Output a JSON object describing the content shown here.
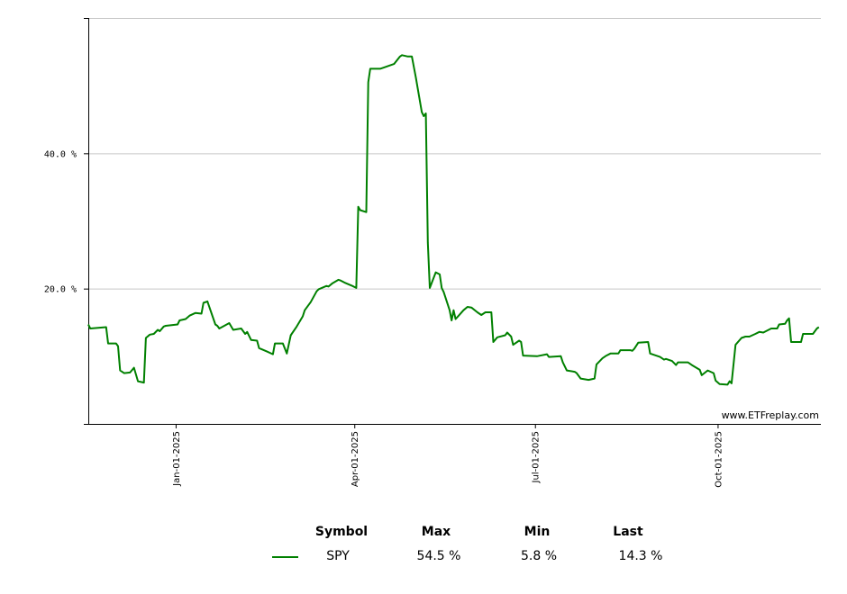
{
  "chart_data": {
    "type": "line",
    "title": "",
    "xlabel": "",
    "ylabel": "",
    "x_type": "date",
    "xlim": [
      "2024-11-18",
      "2025-11-22"
    ],
    "ylim": [
      0,
      60
    ],
    "y_ticks": [
      20,
      40
    ],
    "y_tick_labels": [
      "20.0 %",
      "40.0 %"
    ],
    "x_ticks": [
      "2025-01-01",
      "2025-04-01",
      "2025-07-01",
      "2025-10-01"
    ],
    "x_tick_labels": [
      "Jan-01-2025",
      "Apr-01-2025",
      "Jul-01-2025",
      "Oct-01-2025"
    ],
    "grid": "horizontal",
    "legend": "bottom",
    "watermark": "www.ETFreplay.com",
    "series": [
      {
        "name": "SPY",
        "color": "#008000",
        "points": [
          [
            "2024-11-18",
            14.7
          ],
          [
            "2024-11-19",
            14.1
          ],
          [
            "2024-11-27",
            14.3
          ],
          [
            "2024-11-28",
            11.9
          ],
          [
            "2024-12-02",
            11.9
          ],
          [
            "2024-12-03",
            11.5
          ],
          [
            "2024-12-04",
            7.9
          ],
          [
            "2024-12-06",
            7.5
          ],
          [
            "2024-12-09",
            7.6
          ],
          [
            "2024-12-11",
            8.3
          ],
          [
            "2024-12-13",
            6.3
          ],
          [
            "2024-12-16",
            6.1
          ],
          [
            "2024-12-17",
            12.7
          ],
          [
            "2024-12-19",
            13.2
          ],
          [
            "2024-12-21",
            13.3
          ],
          [
            "2024-12-23",
            13.9
          ],
          [
            "2024-12-24",
            13.7
          ],
          [
            "2024-12-26",
            14.4
          ],
          [
            "2024-12-27",
            14.5
          ],
          [
            "2025-01-02",
            14.7
          ],
          [
            "2025-01-03",
            15.3
          ],
          [
            "2025-01-06",
            15.5
          ],
          [
            "2025-01-08",
            16.0
          ],
          [
            "2025-01-11",
            16.4
          ],
          [
            "2025-01-14",
            16.3
          ],
          [
            "2025-01-15",
            17.9
          ],
          [
            "2025-01-17",
            18.1
          ],
          [
            "2025-01-21",
            14.7
          ],
          [
            "2025-01-22",
            14.5
          ],
          [
            "2025-01-23",
            14.1
          ],
          [
            "2025-01-28",
            14.9
          ],
          [
            "2025-01-30",
            13.9
          ],
          [
            "2025-02-03",
            14.1
          ],
          [
            "2025-02-05",
            13.3
          ],
          [
            "2025-02-06",
            13.6
          ],
          [
            "2025-02-08",
            12.4
          ],
          [
            "2025-02-11",
            12.3
          ],
          [
            "2025-02-12",
            11.2
          ],
          [
            "2025-02-16",
            10.7
          ],
          [
            "2025-02-19",
            10.3
          ],
          [
            "2025-02-20",
            11.9
          ],
          [
            "2025-02-24",
            11.9
          ],
          [
            "2025-02-26",
            10.4
          ],
          [
            "2025-02-28",
            13.1
          ],
          [
            "2025-03-03",
            14.4
          ],
          [
            "2025-03-06",
            15.9
          ],
          [
            "2025-03-07",
            16.8
          ],
          [
            "2025-03-10",
            18.0
          ],
          [
            "2025-03-13",
            19.6
          ],
          [
            "2025-03-14",
            19.9
          ],
          [
            "2025-03-18",
            20.4
          ],
          [
            "2025-03-19",
            20.3
          ],
          [
            "2025-03-21",
            20.8
          ],
          [
            "2025-03-24",
            21.3
          ],
          [
            "2025-03-25",
            21.2
          ],
          [
            "2025-03-27",
            20.9
          ],
          [
            "2025-03-31",
            20.4
          ],
          [
            "2025-04-02",
            20.1
          ],
          [
            "2025-04-03",
            32.1
          ],
          [
            "2025-04-04",
            31.6
          ],
          [
            "2025-04-07",
            31.3
          ],
          [
            "2025-04-08",
            50.5
          ],
          [
            "2025-04-09",
            52.5
          ],
          [
            "2025-04-14",
            52.5
          ],
          [
            "2025-04-16",
            52.7
          ],
          [
            "2025-04-21",
            53.2
          ],
          [
            "2025-04-24",
            54.3
          ],
          [
            "2025-04-25",
            54.5
          ],
          [
            "2025-04-28",
            54.3
          ],
          [
            "2025-04-30",
            54.3
          ],
          [
            "2025-05-02",
            51.2
          ],
          [
            "2025-05-05",
            46.1
          ],
          [
            "2025-05-06",
            45.5
          ],
          [
            "2025-05-07",
            45.9
          ],
          [
            "2025-05-08",
            26.8
          ],
          [
            "2025-05-09",
            20.1
          ],
          [
            "2025-05-12",
            22.4
          ],
          [
            "2025-05-14",
            22.1
          ],
          [
            "2025-05-15",
            20.1
          ],
          [
            "2025-05-16",
            19.5
          ],
          [
            "2025-05-19",
            16.8
          ],
          [
            "2025-05-20",
            15.3
          ],
          [
            "2025-05-21",
            16.8
          ],
          [
            "2025-05-22",
            15.5
          ],
          [
            "2025-05-26",
            16.8
          ],
          [
            "2025-05-28",
            17.3
          ],
          [
            "2025-05-30",
            17.2
          ],
          [
            "2025-06-02",
            16.5
          ],
          [
            "2025-06-04",
            16.1
          ],
          [
            "2025-06-06",
            16.5
          ],
          [
            "2025-06-09",
            16.5
          ],
          [
            "2025-06-10",
            12.1
          ],
          [
            "2025-06-12",
            12.8
          ],
          [
            "2025-06-16",
            13.1
          ],
          [
            "2025-06-17",
            13.5
          ],
          [
            "2025-06-19",
            12.9
          ],
          [
            "2025-06-20",
            11.7
          ],
          [
            "2025-06-23",
            12.3
          ],
          [
            "2025-06-24",
            12.1
          ],
          [
            "2025-06-25",
            10.1
          ],
          [
            "2025-07-02",
            10.0
          ],
          [
            "2025-07-07",
            10.3
          ],
          [
            "2025-07-08",
            9.9
          ],
          [
            "2025-07-14",
            10.0
          ],
          [
            "2025-07-15",
            9.1
          ],
          [
            "2025-07-17",
            7.9
          ],
          [
            "2025-07-21",
            7.7
          ],
          [
            "2025-07-22",
            7.5
          ],
          [
            "2025-07-24",
            6.7
          ],
          [
            "2025-07-28",
            6.5
          ],
          [
            "2025-07-31",
            6.7
          ],
          [
            "2025-08-01",
            8.8
          ],
          [
            "2025-08-04",
            9.7
          ],
          [
            "2025-08-06",
            10.1
          ],
          [
            "2025-08-08",
            10.4
          ],
          [
            "2025-08-12",
            10.4
          ],
          [
            "2025-08-13",
            10.9
          ],
          [
            "2025-08-18",
            10.9
          ],
          [
            "2025-08-19",
            10.8
          ],
          [
            "2025-08-20",
            11.1
          ],
          [
            "2025-08-22",
            12.0
          ],
          [
            "2025-08-27",
            12.1
          ],
          [
            "2025-08-28",
            10.4
          ],
          [
            "2025-09-02",
            9.9
          ],
          [
            "2025-09-03",
            9.7
          ],
          [
            "2025-09-04",
            9.5
          ],
          [
            "2025-09-05",
            9.6
          ],
          [
            "2025-09-08",
            9.3
          ],
          [
            "2025-09-10",
            8.7
          ],
          [
            "2025-09-11",
            9.1
          ],
          [
            "2025-09-16",
            9.1
          ],
          [
            "2025-09-18",
            8.7
          ],
          [
            "2025-09-22",
            8.0
          ],
          [
            "2025-09-23",
            7.2
          ],
          [
            "2025-09-26",
            7.9
          ],
          [
            "2025-09-29",
            7.5
          ],
          [
            "2025-09-30",
            6.4
          ],
          [
            "2025-10-02",
            5.9
          ],
          [
            "2025-10-06",
            5.8
          ],
          [
            "2025-10-07",
            6.3
          ],
          [
            "2025-10-08",
            6.0
          ],
          [
            "2025-10-10",
            11.7
          ],
          [
            "2025-10-13",
            12.7
          ],
          [
            "2025-10-15",
            12.9
          ],
          [
            "2025-10-17",
            12.9
          ],
          [
            "2025-10-20",
            13.3
          ],
          [
            "2025-10-22",
            13.6
          ],
          [
            "2025-10-24",
            13.5
          ],
          [
            "2025-10-28",
            14.1
          ],
          [
            "2025-10-31",
            14.1
          ],
          [
            "2025-11-01",
            14.7
          ],
          [
            "2025-11-04",
            14.8
          ],
          [
            "2025-11-05",
            15.3
          ],
          [
            "2025-11-06",
            15.6
          ],
          [
            "2025-11-07",
            12.1
          ],
          [
            "2025-11-12",
            12.1
          ],
          [
            "2025-11-13",
            13.3
          ],
          [
            "2025-11-18",
            13.3
          ],
          [
            "2025-11-20",
            14.1
          ],
          [
            "2025-11-21",
            14.3
          ]
        ]
      }
    ]
  },
  "legend_table": {
    "headers": {
      "symbol": "Symbol",
      "max": "Max",
      "min": "Min",
      "last": "Last"
    },
    "rows": [
      {
        "symbol": "SPY",
        "max": "54.5 %",
        "min": "5.8 %",
        "last": "14.3 %",
        "color": "#008000"
      }
    ]
  }
}
